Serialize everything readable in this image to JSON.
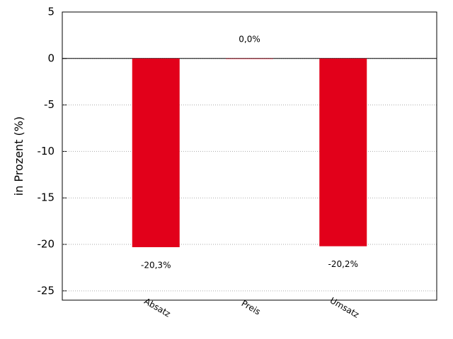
{
  "chart_data": {
    "type": "bar",
    "y_label": "in Prozent (%)",
    "categories": [
      "Absatz",
      "Preis",
      "Umsatz"
    ],
    "values": [
      -20.3,
      0.0,
      -20.2
    ],
    "value_labels": [
      "-20,3%",
      "0,0%",
      "-20,2%"
    ],
    "color": "#e2001a",
    "ylim": [
      -26,
      5
    ],
    "yticks": [
      5,
      0,
      -5,
      -10,
      -15,
      -20,
      -25
    ],
    "grid": true
  }
}
